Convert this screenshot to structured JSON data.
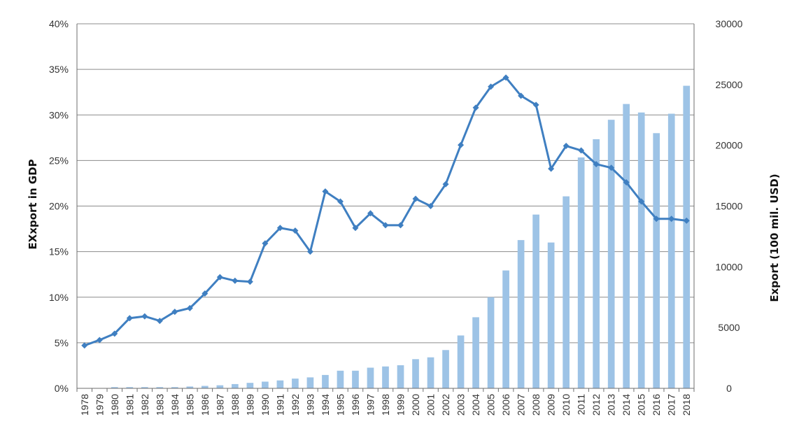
{
  "chart_data": {
    "type": "bar+line",
    "categories": [
      "1978",
      "1979",
      "1980",
      "1981",
      "1982",
      "1983",
      "1984",
      "1985",
      "1986",
      "1987",
      "1988",
      "1989",
      "1990",
      "1991",
      "1992",
      "1993",
      "1994",
      "1995",
      "1996",
      "1997",
      "1998",
      "1999",
      "2000",
      "2001",
      "2002",
      "2003",
      "2004",
      "2005",
      "2006",
      "2007",
      "2008",
      "2009",
      "2010",
      "2011",
      "2012",
      "2013",
      "2014",
      "2015",
      "2016",
      "2017",
      "2018"
    ],
    "series": [
      {
        "type": "bar",
        "axis": "right",
        "color": "#9dc3e6",
        "values": [
          0,
          0,
          100,
          100,
          100,
          100,
          100,
          150,
          200,
          250,
          350,
          450,
          550,
          650,
          800,
          900,
          1100,
          1450,
          1450,
          1700,
          1800,
          1900,
          2400,
          2550,
          3150,
          4350,
          5850,
          7500,
          9700,
          12200,
          14300,
          12000,
          15800,
          19000,
          20500,
          22100,
          23400,
          22700,
          21000,
          22600,
          24900
        ]
      },
      {
        "type": "line",
        "axis": "left",
        "color": "#3f7fc1",
        "values": [
          4.7,
          5.3,
          6.0,
          7.7,
          7.9,
          7.4,
          8.4,
          8.8,
          10.4,
          12.2,
          11.8,
          11.7,
          15.9,
          17.6,
          17.3,
          15.0,
          21.6,
          20.5,
          17.6,
          19.2,
          17.9,
          17.9,
          20.8,
          20.0,
          22.4,
          26.7,
          30.8,
          33.1,
          34.1,
          32.1,
          31.1,
          24.1,
          26.6,
          26.1,
          24.6,
          24.2,
          22.6,
          20.5,
          18.6,
          18.6,
          18.4
        ]
      }
    ],
    "y_left": {
      "label": "EXxport in GDP",
      "ylim": [
        0,
        40
      ],
      "ticks": [
        "0%",
        "5%",
        "10%",
        "15%",
        "20%",
        "25%",
        "30%",
        "35%",
        "40%"
      ]
    },
    "y_right": {
      "label": "Export (100 mil. USD)",
      "ylim": [
        0,
        30000
      ],
      "ticks": [
        "0",
        "5000",
        "10000",
        "15000",
        "20000",
        "25000",
        "30000"
      ]
    },
    "grid": true
  }
}
